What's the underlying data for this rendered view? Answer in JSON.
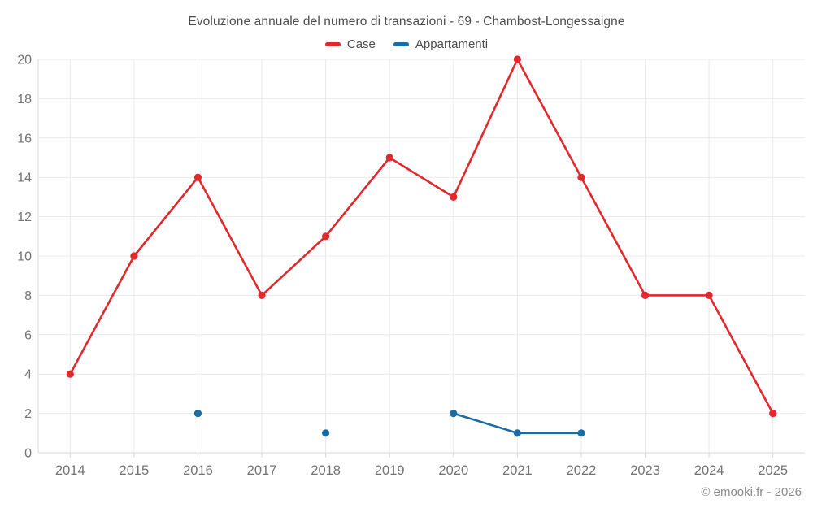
{
  "page": {
    "footer": "© emooki.fr - 2026"
  },
  "chart_data": {
    "type": "line",
    "title": "Evoluzione annuale del numero di transazioni - 69 - Chambost-Longessaigne",
    "categories": [
      "2014",
      "2015",
      "2016",
      "2017",
      "2018",
      "2019",
      "2020",
      "2021",
      "2022",
      "2023",
      "2024",
      "2025"
    ],
    "series": [
      {
        "name": "Case",
        "color": "#e0282d",
        "values": [
          4,
          10,
          14,
          8,
          11,
          15,
          13,
          20,
          14,
          8,
          8,
          2
        ]
      },
      {
        "name": "Appartamenti",
        "color": "#1a6ca4",
        "values": [
          null,
          null,
          2,
          null,
          1,
          null,
          2,
          1,
          1,
          null,
          null,
          null
        ]
      }
    ],
    "xlabel": "",
    "ylabel": "",
    "ylim": [
      0,
      20
    ],
    "ytick_step": 2,
    "grid": true,
    "legend_position": "top",
    "colors": {
      "grid": "#e9e9e9",
      "axis": "#d9d9d9",
      "tick_label": "#737373",
      "title": "#4d4d4d"
    }
  }
}
